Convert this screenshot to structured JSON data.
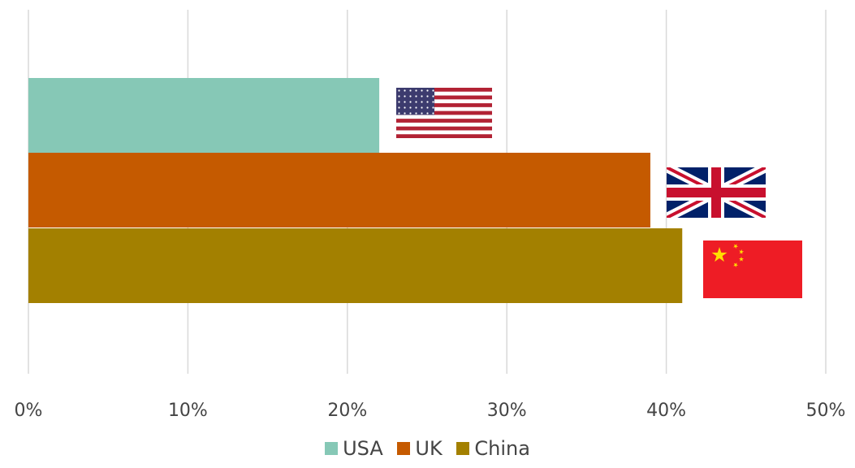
{
  "chart_data": {
    "type": "bar",
    "orientation": "horizontal",
    "categories": [
      "USA",
      "UK",
      "China"
    ],
    "values": [
      22,
      39,
      41
    ],
    "unit": "%",
    "series": [
      {
        "name": "USA",
        "value": 22,
        "color": "#86C8B6",
        "icon": "usa-flag"
      },
      {
        "name": "UK",
        "value": 39,
        "color": "#C55A00",
        "icon": "uk-flag"
      },
      {
        "name": "China",
        "value": 41,
        "color": "#A38000",
        "icon": "china-flag"
      }
    ],
    "xlim": [
      0,
      50
    ],
    "xticks": [
      "0%",
      "10%",
      "20%",
      "30%",
      "40%",
      "50%"
    ],
    "grid": true,
    "legend_position": "bottom",
    "title": "",
    "xlabel": "",
    "ylabel": ""
  }
}
